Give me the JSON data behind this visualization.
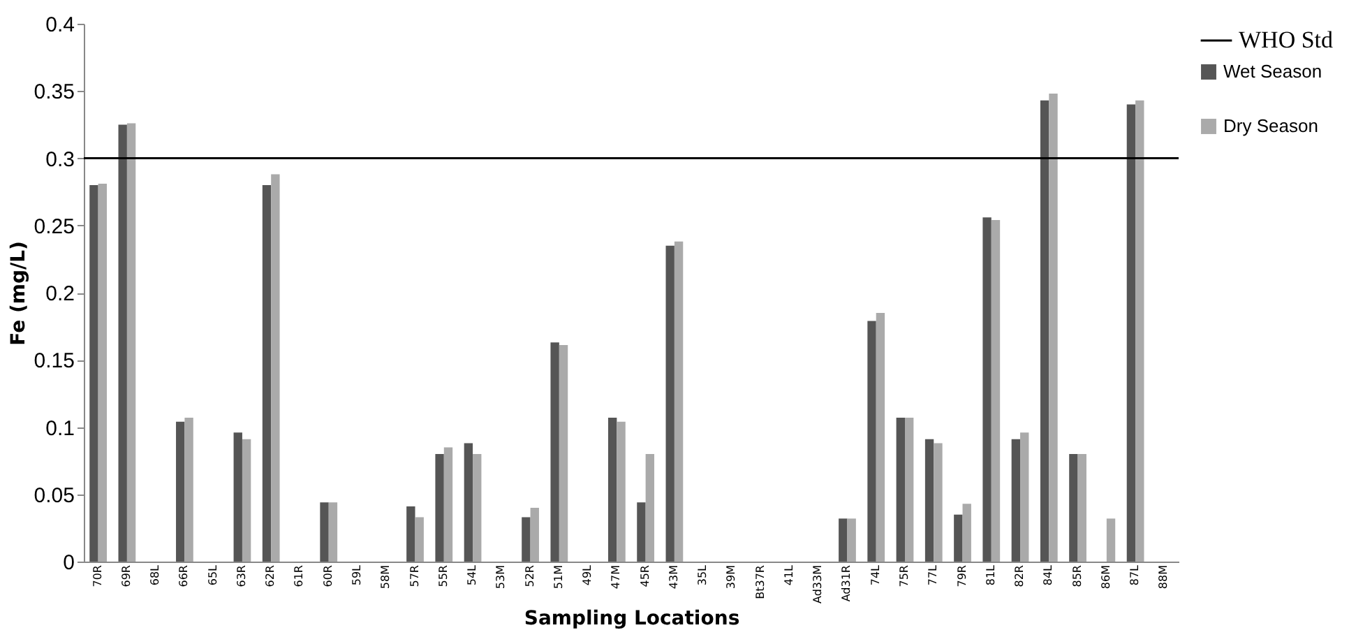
{
  "chart_data": {
    "type": "bar",
    "xlabel": "Sampling Locations",
    "ylabel": "Fe (mg/L)",
    "categories": [
      "70R",
      "69R",
      "68L",
      "66R",
      "65L",
      "63R",
      "62R",
      "61R",
      "60R",
      "59L",
      "58M",
      "57R",
      "55R",
      "54L",
      "53M",
      "52R",
      "51M",
      "49L",
      "47M",
      "45R",
      "43M",
      "35L",
      "39M",
      "Bt37R",
      "41L",
      "Ad33M",
      "Ad31R",
      "74L",
      "75R",
      "77L",
      "79R",
      "81L",
      "82R",
      "84L",
      "85R",
      "86M",
      "87L",
      "88M"
    ],
    "series": [
      {
        "name": "Wet Season",
        "color": "#555555",
        "values": [
          0.28,
          0.325,
          null,
          0.104,
          null,
          0.096,
          0.28,
          null,
          0.044,
          null,
          null,
          0.041,
          0.08,
          0.088,
          null,
          0.033,
          0.163,
          null,
          0.107,
          0.044,
          0.235,
          null,
          null,
          null,
          null,
          null,
          0.032,
          0.179,
          0.107,
          0.091,
          0.035,
          0.256,
          0.091,
          0.343,
          0.08,
          null,
          0.34,
          null
        ]
      },
      {
        "name": "Dry Season",
        "color": "#aaaaaa",
        "values": [
          0.281,
          0.326,
          null,
          0.107,
          null,
          0.091,
          0.288,
          null,
          0.044,
          null,
          null,
          0.033,
          0.085,
          0.08,
          null,
          0.04,
          0.161,
          null,
          0.104,
          0.08,
          0.238,
          null,
          null,
          null,
          null,
          null,
          0.032,
          0.185,
          0.107,
          0.088,
          0.043,
          0.254,
          0.096,
          0.348,
          0.08,
          0.032,
          0.343,
          null
        ]
      }
    ],
    "ylim": [
      0,
      0.4
    ],
    "yticks": [
      0,
      0.05,
      0.1,
      0.15,
      0.2,
      0.25,
      0.3,
      0.35,
      0.4
    ],
    "ref_lines": [
      {
        "axis": "y",
        "value": 0.3,
        "label": "WHO Std",
        "color": "#000000"
      }
    ],
    "grid": false,
    "legend": "right"
  }
}
